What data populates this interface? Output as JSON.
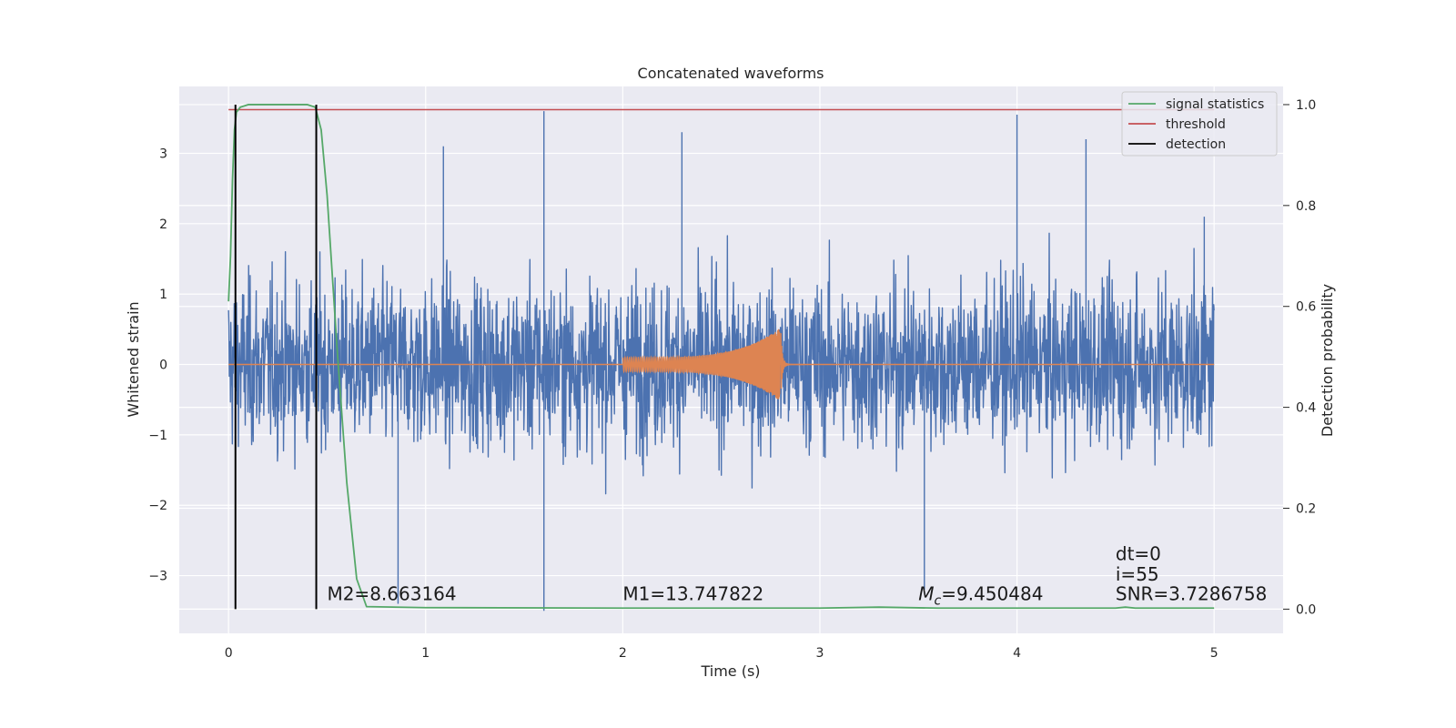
{
  "chart_data": {
    "type": "line",
    "title": "Concatenated waveforms",
    "xlabel": "Time (s)",
    "ylabel": "Whitened strain",
    "ylabel_right": "Detection probability",
    "xlim": [
      -0.25,
      5.35
    ],
    "ylim": [
      -3.82,
      3.95
    ],
    "ylim_right": [
      -0.048,
      1.036
    ],
    "x_ticks": [
      0,
      1,
      2,
      3,
      4,
      5
    ],
    "x_tick_labels": [
      "0",
      "1",
      "2",
      "3",
      "4",
      "5"
    ],
    "y_ticks": [
      -3,
      -2,
      -1,
      0,
      1,
      2,
      3
    ],
    "y_tick_labels": [
      "−3",
      "−2",
      "−1",
      "0",
      "1",
      "2",
      "3"
    ],
    "y2_ticks": [
      0.0,
      0.2,
      0.4,
      0.6,
      0.8,
      1.0
    ],
    "y2_tick_labels": [
      "0.0",
      "0.2",
      "0.4",
      "0.6",
      "0.8",
      "1.0"
    ],
    "grid": true,
    "legend_position": "top-right",
    "series": [
      {
        "key": "noise",
        "axis": "left",
        "color": "#4c72b0",
        "t_range": [
          0,
          5
        ],
        "typical_amplitude": 1.0,
        "peaks": [
          {
            "x": 1.6,
            "y": 3.6
          },
          {
            "x": 4.0,
            "y": 3.55
          },
          {
            "x": 1.09,
            "y": 3.1
          },
          {
            "x": 2.3,
            "y": 3.3
          },
          {
            "x": 4.35,
            "y": 3.2
          },
          {
            "x": 1.6,
            "y": -3.5
          },
          {
            "x": 0.86,
            "y": -3.4
          },
          {
            "x": 3.53,
            "y": -3.2
          },
          {
            "x": 4.95,
            "y": 2.1
          }
        ]
      },
      {
        "key": "waveform",
        "axis": "left",
        "color": "#dd8452",
        "t_start": 2.0,
        "t_merger": 2.8,
        "amplitude_start": 0.1,
        "amplitude_peak": 0.52
      },
      {
        "name": "signal statistics",
        "axis": "right",
        "color": "#55a868",
        "x": [
          0,
          0.01,
          0.02,
          0.03,
          0.04,
          0.06,
          0.1,
          0.2,
          0.3,
          0.4,
          0.44,
          0.47,
          0.5,
          0.55,
          0.6,
          0.65,
          0.7,
          1.0,
          2.0,
          3.0,
          3.3,
          3.6,
          4.5,
          4.55,
          4.6,
          5.0
        ],
        "y": [
          0.61,
          0.7,
          0.85,
          0.95,
          0.985,
          0.995,
          1.0,
          1.0,
          1.0,
          1.0,
          0.995,
          0.95,
          0.82,
          0.52,
          0.25,
          0.06,
          0.005,
          0.003,
          0.002,
          0.002,
          0.004,
          0.002,
          0.002,
          0.004,
          0.002,
          0.002
        ]
      },
      {
        "name": "threshold",
        "axis": "right",
        "color": "#c44e52",
        "x": [
          0,
          5
        ],
        "y": [
          0.99,
          0.99
        ]
      },
      {
        "name": "detection",
        "axis": "right",
        "color": "#000000",
        "x": [
          0.035,
          0.445
        ],
        "y_range": [
          0.0,
          1.0
        ]
      }
    ],
    "annotations": [
      {
        "x": 0.5,
        "y": -3.35,
        "text": "M2=8.663164"
      },
      {
        "x": 2.0,
        "y": -3.35,
        "text": "M1=13.747822"
      },
      {
        "x": 3.5,
        "y": -3.35,
        "text_main": "M",
        "text_sub": "c",
        "text_rest": "=9.450484"
      },
      {
        "x": 4.5,
        "y": -2.78,
        "text": "dt=0"
      },
      {
        "x": 4.5,
        "y": -3.07,
        "text": "i=55"
      },
      {
        "x": 4.5,
        "y": -3.35,
        "text": "SNR=3.7286758"
      }
    ]
  }
}
